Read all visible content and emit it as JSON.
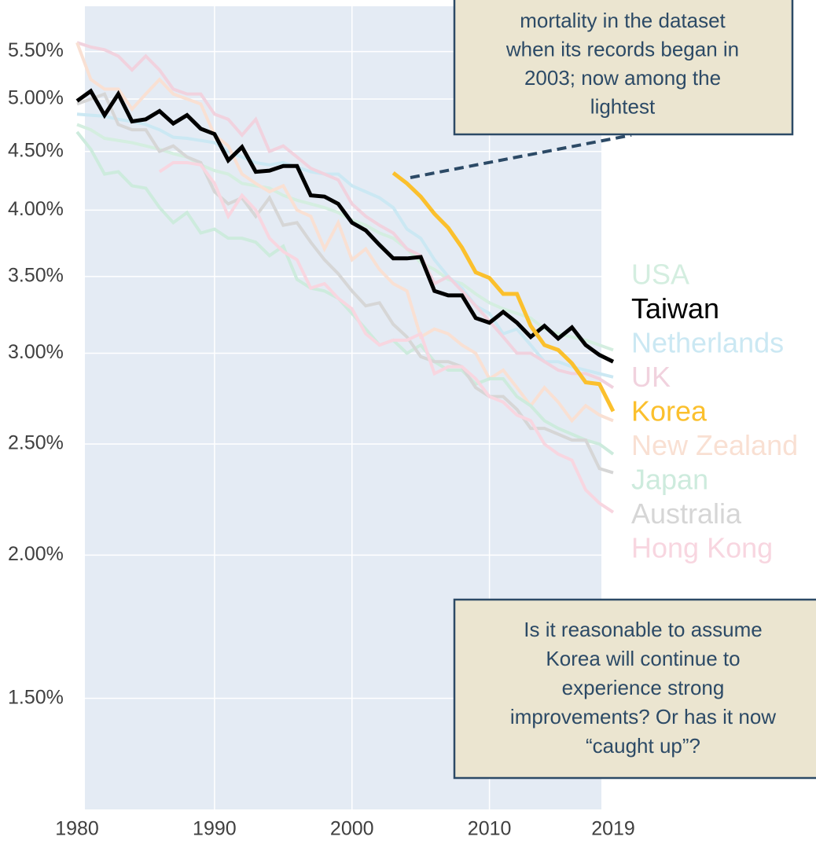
{
  "chart_data": {
    "type": "line",
    "log_scale_y": true,
    "grid": true,
    "x": [
      1980,
      1981,
      1982,
      1983,
      1984,
      1985,
      1986,
      1987,
      1988,
      1989,
      1990,
      1991,
      1992,
      1993,
      1994,
      1995,
      1996,
      1997,
      1998,
      1999,
      2000,
      2001,
      2002,
      2003,
      2004,
      2005,
      2006,
      2007,
      2008,
      2009,
      2010,
      2011,
      2012,
      2013,
      2014,
      2015,
      2016,
      2017,
      2018,
      2019
    ],
    "xlim": [
      1980,
      2019
    ],
    "xticks": [
      1980,
      1990,
      2000,
      2010,
      2019
    ],
    "ylim": [
      1.2,
      6.1
    ],
    "yticks": [
      {
        "value": 1.5,
        "label": "1.50%"
      },
      {
        "value": 2,
        "label": "2.00%"
      },
      {
        "value": 2.5,
        "label": "2.50%"
      },
      {
        "value": 3,
        "label": "3.00%"
      },
      {
        "value": 3.5,
        "label": "3.50%"
      },
      {
        "value": 4,
        "label": "4.00%"
      },
      {
        "value": 4.5,
        "label": "4.50%"
      },
      {
        "value": 5,
        "label": "5.00%"
      },
      {
        "value": 5.5,
        "label": "5.50%"
      }
    ],
    "series": [
      {
        "name": "USA",
        "color": "#d4eee0",
        "linewidth": 4,
        "values": [
          4.75,
          4.7,
          4.62,
          4.6,
          4.58,
          4.55,
          4.52,
          4.48,
          4.45,
          4.38,
          4.33,
          4.3,
          4.22,
          4.2,
          4.18,
          4.12,
          4.08,
          4.05,
          4.02,
          3.98,
          3.92,
          3.88,
          3.82,
          3.78,
          3.7,
          3.6,
          3.55,
          3.48,
          3.45,
          3.38,
          3.32,
          3.28,
          3.25,
          3.22,
          3.15,
          3.12,
          3.1,
          3.08,
          3.05,
          3.02
        ]
      },
      {
        "name": "Taiwan",
        "color": "#000000",
        "linewidth": 5,
        "values": [
          4.98,
          5.08,
          4.84,
          5.05,
          4.78,
          4.8,
          4.88,
          4.76,
          4.84,
          4.71,
          4.66,
          4.42,
          4.54,
          4.32,
          4.33,
          4.37,
          4.37,
          4.12,
          4.11,
          4.05,
          3.9,
          3.84,
          3.73,
          3.63,
          3.63,
          3.64,
          3.4,
          3.37,
          3.37,
          3.22,
          3.19,
          3.26,
          3.19,
          3.1,
          3.17,
          3.09,
          3.16,
          3.05,
          2.99,
          2.95
        ]
      },
      {
        "name": "Netherlands",
        "color": "#cbe8f3",
        "linewidth": 4,
        "values": [
          4.85,
          4.84,
          4.83,
          4.8,
          4.78,
          4.75,
          4.7,
          4.63,
          4.62,
          4.6,
          4.58,
          4.5,
          4.45,
          4.4,
          4.38,
          4.4,
          4.36,
          4.32,
          4.3,
          4.3,
          4.2,
          4.15,
          4.1,
          4.02,
          3.85,
          3.78,
          3.62,
          3.5,
          3.42,
          3.3,
          3.25,
          3.12,
          3.15,
          3.05,
          2.95,
          2.95,
          2.92,
          2.9,
          2.88,
          2.86
        ]
      },
      {
        "name": "UK",
        "color": "#f1d2de",
        "linewidth": 4,
        "values": [
          5.6,
          5.55,
          5.52,
          5.45,
          5.3,
          5.45,
          5.3,
          5.1,
          5.05,
          5.05,
          4.85,
          4.8,
          4.65,
          4.8,
          4.5,
          4.55,
          4.45,
          4.35,
          4.3,
          4.25,
          4.05,
          3.95,
          3.88,
          3.82,
          3.7,
          3.65,
          3.45,
          3.5,
          3.4,
          3.3,
          3.2,
          3.1,
          3.0,
          3.0,
          2.95,
          2.9,
          2.88,
          2.88,
          2.85,
          2.8
        ]
      },
      {
        "name": "Korea",
        "color": "#fbc02d",
        "linewidth": 5,
        "values": [
          null,
          null,
          null,
          null,
          null,
          null,
          null,
          null,
          null,
          null,
          null,
          null,
          null,
          null,
          null,
          null,
          null,
          null,
          null,
          null,
          null,
          null,
          null,
          4.31,
          4.22,
          4.11,
          3.97,
          3.86,
          3.71,
          3.53,
          3.49,
          3.38,
          3.38,
          3.17,
          3.05,
          3.02,
          2.94,
          2.83,
          2.82,
          2.67
        ]
      },
      {
        "name": "New Zealand",
        "color": "#f9e0d3",
        "linewidth": 4,
        "values": [
          5.6,
          5.2,
          5.1,
          5.1,
          4.9,
          5.05,
          5.2,
          5.05,
          5.0,
          4.95,
          4.65,
          4.55,
          4.3,
          4.22,
          4.15,
          4.2,
          4.0,
          3.95,
          3.7,
          3.9,
          3.62,
          3.7,
          3.55,
          3.45,
          3.4,
          3.1,
          3.15,
          3.12,
          3.05,
          3.0,
          2.85,
          2.9,
          2.8,
          2.7,
          2.8,
          2.72,
          2.62,
          2.7,
          2.65,
          2.62
        ]
      },
      {
        "name": "Japan",
        "color": "#cdebdd",
        "linewidth": 4,
        "values": [
          4.68,
          4.52,
          4.3,
          4.32,
          4.2,
          4.18,
          4.02,
          3.9,
          3.98,
          3.82,
          3.85,
          3.78,
          3.78,
          3.75,
          3.65,
          3.72,
          3.48,
          3.42,
          3.4,
          3.35,
          3.25,
          3.15,
          3.05,
          3.08,
          3.0,
          3.05,
          2.95,
          2.9,
          2.9,
          2.82,
          2.85,
          2.85,
          2.75,
          2.7,
          2.62,
          2.58,
          2.55,
          2.52,
          2.5,
          2.45
        ]
      },
      {
        "name": "Australia",
        "color": "#d6d6d6",
        "linewidth": 4,
        "values": [
          4.95,
          5.0,
          5.05,
          4.75,
          4.7,
          4.7,
          4.5,
          4.55,
          4.45,
          4.4,
          4.15,
          4.05,
          4.1,
          3.95,
          4.1,
          3.88,
          3.9,
          3.75,
          3.62,
          3.52,
          3.4,
          3.3,
          3.32,
          3.18,
          3.1,
          2.98,
          2.95,
          2.95,
          2.92,
          2.8,
          2.75,
          2.75,
          2.68,
          2.58,
          2.58,
          2.55,
          2.52,
          2.52,
          2.38,
          2.36
        ]
      },
      {
        "name": "Hong Kong",
        "color": "#f8d6e0",
        "linewidth": 4,
        "values": [
          null,
          null,
          null,
          null,
          null,
          null,
          4.32,
          4.4,
          4.4,
          4.38,
          4.22,
          3.95,
          4.12,
          4.0,
          3.78,
          3.68,
          3.62,
          3.42,
          3.45,
          3.35,
          3.28,
          3.12,
          3.05,
          3.08,
          3.08,
          3.12,
          2.88,
          2.92,
          2.92,
          2.85,
          2.75,
          2.72,
          2.65,
          2.62,
          2.5,
          2.45,
          2.42,
          2.28,
          2.22,
          2.18
        ]
      }
    ],
    "annotations": [
      {
        "lines": [
          "mortality in the dataset",
          "when its records began in",
          "2003; now among the",
          "lightest"
        ]
      },
      {
        "lines": [
          "Is it reasonable to assume",
          "Korea will continue to",
          "experience strong",
          "improvements? Or has it now",
          "“caught up”?"
        ]
      }
    ]
  }
}
